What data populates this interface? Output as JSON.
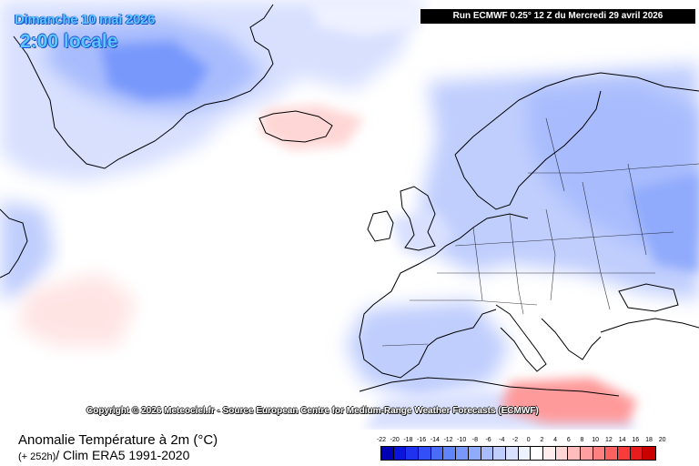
{
  "header": {
    "date": "Dimanche 10 mai 2026",
    "local_time": "2:00 locale",
    "run_info": "Run ECMWF 0.25° 12 Z du Mercredi 29 avril 2026"
  },
  "map": {
    "copyright": "Copyright © 2026 Meteociel.fr - Source European Centre for Medium-Range Weather Forecasts (ECMWF)"
  },
  "legend": {
    "title": "Anomalie Température à 2m (°C)",
    "lead_time": "(+ 252h)",
    "climatology": "/ Clim ERA5 1991-2020",
    "ticks": [
      "-22",
      "-20",
      "-18",
      "-16",
      "-14",
      "-12",
      "-10",
      "-8",
      "-6",
      "-4",
      "-2",
      "0",
      "2",
      "4",
      "6",
      "8",
      "10",
      "12",
      "14",
      "16",
      "18",
      "20"
    ],
    "colors": [
      "#0000b4",
      "#0a14dc",
      "#1e32f0",
      "#3250f5",
      "#4a6cf8",
      "#6084fa",
      "#7898fb",
      "#90aafc",
      "#a8bcfd",
      "#c0cefd",
      "#d8e0fe",
      "#eef1ff",
      "#ffffff",
      "#ffecec",
      "#ffd6d6",
      "#ffbcbc",
      "#ffa0a0",
      "#ff8080",
      "#ff6060",
      "#f83c3c",
      "#e81c1c",
      "#c80000"
    ]
  }
}
